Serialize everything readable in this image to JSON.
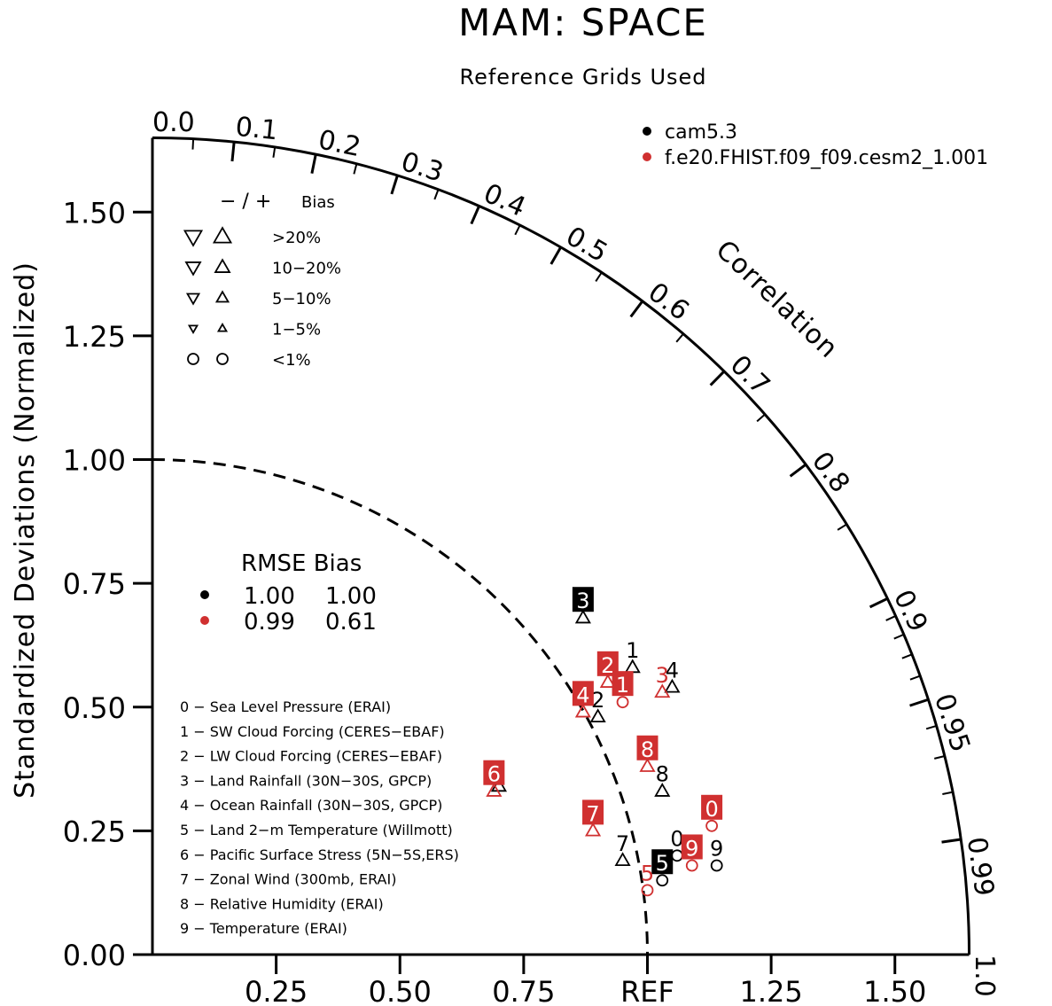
{
  "chart_data": {
    "type": "scatter",
    "subtype": "taylor-diagram",
    "title": "MAM: SPACE",
    "subtitle": "Reference Grids Used",
    "ylabel": "Standardized Deviations (Normalized)",
    "correlation_label": "Correlation",
    "y_ticks": [
      "0.00",
      "0.25",
      "0.50",
      "0.75",
      "1.00",
      "1.25",
      "1.50"
    ],
    "x_ticks": [
      "0.25",
      "0.50",
      "0.75",
      "REF",
      "1.25",
      "1.50"
    ],
    "correlation_ticks": [
      "0.0",
      "0.1",
      "0.2",
      "0.3",
      "0.4",
      "0.5",
      "0.6",
      "0.7",
      "0.8",
      "0.9",
      "0.95",
      "0.99",
      "1.0"
    ],
    "xlim": [
      0,
      1.65
    ],
    "ylim": [
      0,
      1.65
    ],
    "ref_arc_radius": 1.0,
    "models": [
      {
        "name": "cam5.3",
        "color": "#000000"
      },
      {
        "name": "f.e20.FHIST.f09_f09.cesm2_1.001",
        "color": "#d03030"
      }
    ],
    "bias_legend": {
      "header_signs": "− / +",
      "header_label": "Bias",
      "rows": [
        ">20%",
        "10−20%",
        "5−10%",
        "1−5%",
        "<1%"
      ]
    },
    "stats": {
      "header": "RMSE Bias",
      "rows": [
        {
          "rmse": "1.00",
          "bias": "1.00",
          "color": "#000000"
        },
        {
          "rmse": "0.99",
          "bias": "0.61",
          "color": "#d03030"
        }
      ]
    },
    "variables": [
      "0 − Sea Level Pressure (ERAI)",
      "1 − SW Cloud Forcing (CERES−EBAF)",
      "2 − LW Cloud Forcing (CERES−EBAF)",
      "3 − Land Rainfall (30N−30S, GPCP)",
      "4 − Ocean Rainfall (30N−30S, GPCP)",
      "5 − Land 2−m Temperature (Willmott)",
      "6 − Pacific Surface Stress (5N−5S,ERS)",
      "7 − Zonal Wind (300mb, ERAI)",
      "8 − Relative Humidity (ERAI)",
      "9 − Temperature (ERAI)"
    ],
    "series": [
      {
        "name": "cam5.3",
        "color": "#000000",
        "points": [
          {
            "label": "0",
            "x": 1.06,
            "y": 0.2,
            "marker": "circle",
            "boxed": false
          },
          {
            "label": "1",
            "x": 0.97,
            "y": 0.58,
            "marker": "up-triangle",
            "boxed": false
          },
          {
            "label": "2",
            "x": 0.9,
            "y": 0.48,
            "marker": "up-triangle",
            "boxed": false
          },
          {
            "label": "3",
            "x": 0.87,
            "y": 0.68,
            "marker": "up-triangle",
            "boxed": true
          },
          {
            "label": "4",
            "x": 1.05,
            "y": 0.54,
            "marker": "up-triangle",
            "boxed": false
          },
          {
            "label": "5",
            "x": 1.03,
            "y": 0.15,
            "marker": "circle",
            "boxed": true
          },
          {
            "label": "6",
            "x": 0.7,
            "y": 0.34,
            "marker": "up-triangle",
            "boxed": false
          },
          {
            "label": "7",
            "x": 0.95,
            "y": 0.19,
            "marker": "up-triangle",
            "boxed": false
          },
          {
            "label": "8",
            "x": 1.03,
            "y": 0.33,
            "marker": "up-triangle",
            "boxed": false
          },
          {
            "label": "9",
            "x": 1.14,
            "y": 0.18,
            "marker": "circle",
            "boxed": false
          }
        ]
      },
      {
        "name": "f.e20.FHIST.f09_f09.cesm2_1.001",
        "color": "#d03030",
        "points": [
          {
            "label": "0",
            "x": 1.13,
            "y": 0.26,
            "marker": "circle",
            "boxed": true
          },
          {
            "label": "1",
            "x": 0.95,
            "y": 0.51,
            "marker": "circle",
            "boxed": true
          },
          {
            "label": "2",
            "x": 0.92,
            "y": 0.55,
            "marker": "up-triangle",
            "boxed": true
          },
          {
            "label": "3",
            "x": 1.03,
            "y": 0.53,
            "marker": "up-triangle",
            "boxed": false
          },
          {
            "label": "4",
            "x": 0.87,
            "y": 0.49,
            "marker": "up-triangle",
            "boxed": true
          },
          {
            "label": "5",
            "x": 1.0,
            "y": 0.13,
            "marker": "circle",
            "boxed": false
          },
          {
            "label": "6",
            "x": 0.69,
            "y": 0.33,
            "marker": "up-triangle",
            "boxed": true
          },
          {
            "label": "7",
            "x": 0.89,
            "y": 0.25,
            "marker": "up-triangle",
            "boxed": true
          },
          {
            "label": "8",
            "x": 1.0,
            "y": 0.38,
            "marker": "up-triangle",
            "boxed": true
          },
          {
            "label": "9",
            "x": 1.09,
            "y": 0.18,
            "marker": "circle",
            "boxed": true
          }
        ]
      }
    ]
  }
}
